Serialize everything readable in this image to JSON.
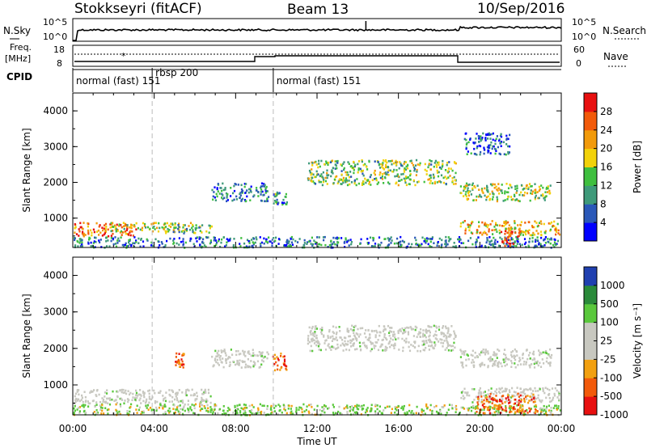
{
  "header": {
    "station": "Stokkseyri (fitACF)",
    "beam": "Beam 13",
    "date": "10/Sep/2016"
  },
  "top_panels": {
    "nsky_label": "N.Sky",
    "nsky_ticks": [
      "10^5",
      "10^0"
    ],
    "nsearch_label": "N.Search",
    "nsearch_ticks": [
      "10^5",
      "10^0"
    ],
    "freq_label_line1": "Freq.",
    "freq_label_line2": "[MHz]",
    "freq_ticks": [
      "18",
      "8"
    ],
    "nave_label": "Nave",
    "nave_ticks": [
      "60",
      "0"
    ],
    "cpid_label": "CPID",
    "cpid_segments": [
      {
        "label": "normal (fast) 151",
        "start_hour": 0,
        "end_hour": 3.9
      },
      {
        "label": "rbsp 200",
        "start_hour": 3.9,
        "end_hour": 9.85
      },
      {
        "label": "normal (fast) 151",
        "start_hour": 9.85,
        "end_hour": 24
      }
    ]
  },
  "colors": {
    "power_scale": [
      "#0000ff",
      "#2a58b8",
      "#3f9a7a",
      "#3fbf3f",
      "#f2d20a",
      "#f29a0a",
      "#f25a0a",
      "#e81010"
    ],
    "velocity_scale": [
      "#e81010",
      "#f25a0a",
      "#f2a010",
      "#c8c8c0",
      "#c8c8c0",
      "#5ac83c",
      "#2a8a3a",
      "#2040b0"
    ],
    "ground_scatter": "#c8c8c0"
  },
  "chart_data": [
    {
      "type": "heatmap",
      "name": "power",
      "ylabel": "Slant Range [km]",
      "yticks": [
        "1000",
        "2000",
        "3000",
        "4000"
      ],
      "ylim": [
        180,
        4500
      ],
      "xlim_hours": [
        0,
        24
      ],
      "colorbar_label": "Power [dB]",
      "colorbar_ticks": [
        "4",
        "8",
        "12",
        "16",
        "20",
        "24",
        "28"
      ],
      "echo_regions": [
        {
          "t0": 0.0,
          "t1": 3.2,
          "r0": 520,
          "r1": 900,
          "level": 0.78
        },
        {
          "t0": 1.8,
          "t1": 5.8,
          "r0": 650,
          "r1": 900,
          "level": 0.55
        },
        {
          "t0": 4.5,
          "t1": 6.8,
          "r0": 600,
          "r1": 850,
          "level": 0.4
        },
        {
          "t0": 0.0,
          "t1": 24.0,
          "r0": 200,
          "r1": 500,
          "level": 0.25
        },
        {
          "t0": 6.8,
          "t1": 9.6,
          "r0": 1500,
          "r1": 2000,
          "level": 0.25
        },
        {
          "t0": 9.8,
          "t1": 10.5,
          "r0": 1400,
          "r1": 1750,
          "level": 0.3
        },
        {
          "t0": 11.5,
          "t1": 18.8,
          "r0": 1950,
          "r1": 2650,
          "level": 0.45
        },
        {
          "t0": 19.0,
          "t1": 23.5,
          "r0": 1500,
          "r1": 2000,
          "level": 0.5
        },
        {
          "t0": 19.2,
          "t1": 21.5,
          "r0": 2800,
          "r1": 3400,
          "level": 0.2
        },
        {
          "t0": 19.0,
          "t1": 23.9,
          "r0": 550,
          "r1": 950,
          "level": 0.65
        },
        {
          "t0": 21.0,
          "t1": 22.0,
          "r0": 250,
          "r1": 700,
          "level": 0.88
        }
      ]
    },
    {
      "type": "heatmap",
      "name": "velocity",
      "ylabel": "Slant Range [km]",
      "yticks": [
        "1000",
        "2000",
        "3000",
        "4000"
      ],
      "ylim": [
        180,
        4500
      ],
      "xlabel": "Time UT",
      "xticks": [
        "00:00",
        "04:00",
        "08:00",
        "12:00",
        "16:00",
        "20:00",
        "00:00"
      ],
      "xlim_hours": [
        0,
        24
      ],
      "colorbar_label": "Velocity [m s⁻¹]",
      "colorbar_ticks": [
        "1000",
        "500",
        "100",
        "25",
        "-25",
        "-100",
        "-500",
        "-1000"
      ],
      "echo_regions": [
        {
          "t0": 0.0,
          "t1": 6.8,
          "r0": 520,
          "r1": 900,
          "class": "ground"
        },
        {
          "t0": 6.8,
          "t1": 9.6,
          "r0": 1500,
          "r1": 2000,
          "class": "ground"
        },
        {
          "t0": 11.5,
          "t1": 18.8,
          "r0": 1950,
          "r1": 2650,
          "class": "ground"
        },
        {
          "t0": 19.0,
          "t1": 23.5,
          "r0": 1500,
          "r1": 2000,
          "class": "ground"
        },
        {
          "t0": 19.0,
          "t1": 23.9,
          "r0": 550,
          "r1": 950,
          "class": "ground"
        },
        {
          "t0": 0.0,
          "t1": 24.0,
          "r0": 200,
          "r1": 500,
          "class": "green"
        },
        {
          "t0": 9.8,
          "t1": 10.5,
          "r0": 1400,
          "r1": 1900,
          "class": "neg"
        },
        {
          "t0": 5.0,
          "t1": 5.5,
          "r0": 1500,
          "r1": 1900,
          "class": "neg"
        },
        {
          "t0": 19.8,
          "t1": 22.8,
          "r0": 250,
          "r1": 800,
          "class": "neg"
        }
      ]
    }
  ]
}
